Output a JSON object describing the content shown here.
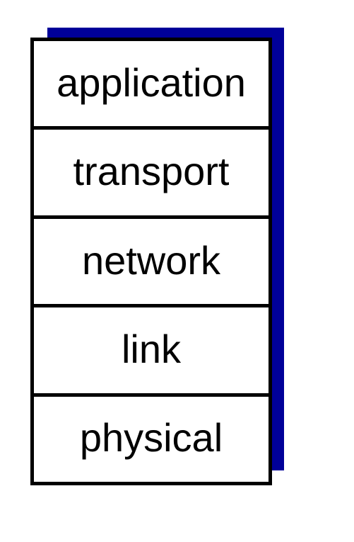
{
  "diagram": {
    "title": "",
    "layers": [
      "application",
      "transport",
      "network",
      "link",
      "physical"
    ]
  },
  "colors": {
    "shadow": "#000099",
    "border": "#000000",
    "text": "#000000",
    "background": "#ffffff"
  }
}
